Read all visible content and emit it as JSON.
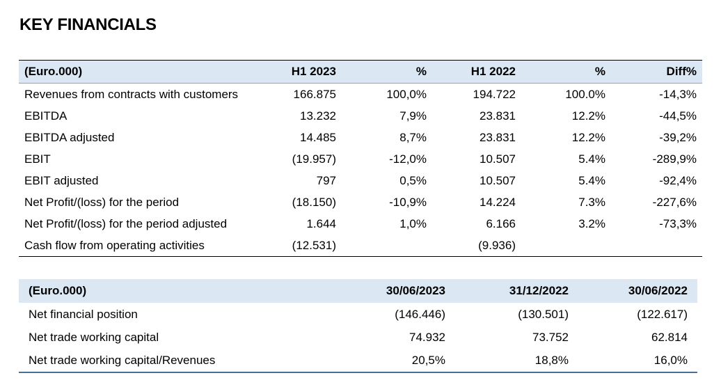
{
  "title": "KEY FINANCIALS",
  "table1": {
    "headers": [
      "(Euro.000)",
      "H1 2023",
      "%",
      "H1 2022",
      "%",
      "Diff%"
    ],
    "rows": [
      [
        "Revenues from contracts with customers",
        "166.875",
        "100,0%",
        "194.722",
        "100.0%",
        "-14,3%"
      ],
      [
        "EBITDA",
        "13.232",
        "7,9%",
        "23.831",
        "12.2%",
        "-44,5%"
      ],
      [
        "EBITDA adjusted",
        "14.485",
        "8,7%",
        "23.831",
        "12.2%",
        "-39,2%"
      ],
      [
        "EBIT",
        "(19.957)",
        "-12,0%",
        "10.507",
        "5.4%",
        "-289,9%"
      ],
      [
        "EBIT adjusted",
        "797",
        "0,5%",
        "10.507",
        "5.4%",
        "-92,4%"
      ],
      [
        "Net Profit/(loss) for the period",
        "(18.150)",
        "-10,9%",
        "14.224",
        "7.3%",
        "-227,6%"
      ],
      [
        "Net Profit/(loss) for the period adjusted",
        "1.644",
        "1,0%",
        "6.166",
        "3.2%",
        "-73,3%"
      ],
      [
        "Cash flow from operating activities",
        "(12.531)",
        "",
        "(9.936)",
        "",
        ""
      ]
    ]
  },
  "table2": {
    "headers": [
      "(Euro.000)",
      "30/06/2023",
      "31/12/2022",
      "30/06/2022"
    ],
    "rows": [
      [
        "Net financial position",
        "(146.446)",
        "(130.501)",
        "(122.617)"
      ],
      [
        "Net trade working capital",
        "74.932",
        "73.752",
        "62.814"
      ],
      [
        "Net trade working capital/Revenues",
        "20,5%",
        "18,8%",
        "16,0%"
      ]
    ]
  }
}
